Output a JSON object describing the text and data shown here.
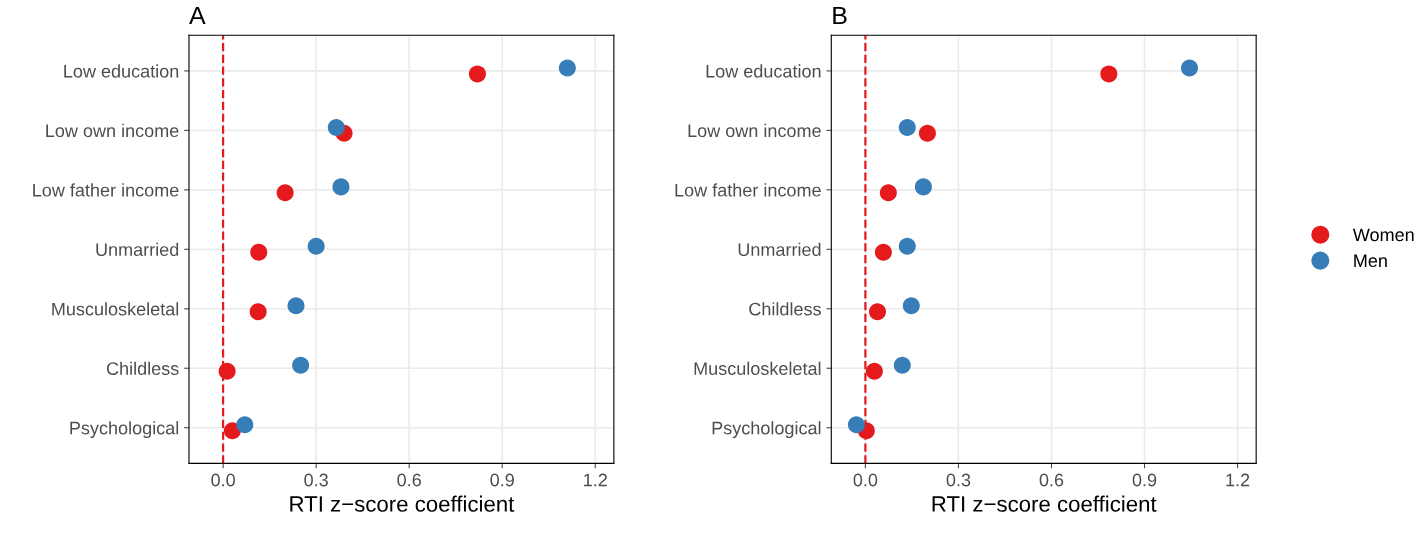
{
  "chart_data": [
    {
      "type": "scatter",
      "title": "A",
      "xlabel": "RTI z−score coefficient",
      "orientation": "horizontal",
      "categories": [
        "Low education",
        "Low own income",
        "Low father income",
        "Unmarried",
        "Musculoskeletal",
        "Childless",
        "Psychological"
      ],
      "xlim": [
        -0.11,
        1.26
      ],
      "xticks": [
        {
          "value": 0,
          "label": "0.0"
        },
        0.3,
        0.6,
        0.9,
        1.2
      ],
      "grid": true,
      "marker": "circle",
      "legend": "right",
      "series": [
        {
          "name": "Women",
          "color": "#e41a1c",
          "values": [
            0.82,
            0.39,
            0.2,
            0.115,
            0.113,
            0.013,
            0.03
          ]
        },
        {
          "name": "Men",
          "color": "#377eb8",
          "values": [
            1.11,
            0.365,
            0.38,
            0.3,
            0.235,
            0.25,
            0.07
          ]
        }
      ],
      "ref_lines": [
        {
          "axis": "x",
          "value": 0,
          "color": "#e41a1c",
          "line_style": "dashed"
        }
      ]
    },
    {
      "type": "scatter",
      "title": "B",
      "xlabel": "RTI z−score coefficient",
      "orientation": "horizontal",
      "categories": [
        "Low education",
        "Low own income",
        "Low father income",
        "Unmarried",
        "Childless",
        "Musculoskeletal",
        "Psychological"
      ],
      "xlim": [
        -0.11,
        1.26
      ],
      "xticks": [
        {
          "value": 0,
          "label": "0.0"
        },
        0.3,
        0.6,
        0.9,
        1.2
      ],
      "grid": true,
      "marker": "circle",
      "series": [
        {
          "color": "#e41a1c",
          "values": [
            0.785,
            0.2,
            0.074,
            0.058,
            0.039,
            0.029,
            0.003
          ]
        },
        {
          "color": "#377eb8",
          "values": [
            1.045,
            0.135,
            0.187,
            0.135,
            0.148,
            0.119,
            -0.029
          ]
        }
      ],
      "ref_lines": [
        {
          "axis": "x",
          "value": 0,
          "color": "#e41a1c",
          "line_style": "dashed"
        }
      ]
    }
  ]
}
